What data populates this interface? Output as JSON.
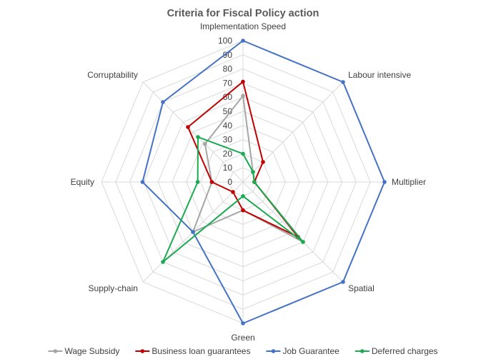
{
  "chart_data": {
    "type": "radar",
    "title": "Criteria for Fiscal Policy action",
    "categories": [
      "Implementation Speed",
      "Labour intensive",
      "Multiplier",
      "Spatial",
      "Green",
      "Supply-chain",
      "Equity",
      "Corruptability"
    ],
    "r_ticks": [
      "0",
      "10",
      "20",
      "30",
      "40",
      "50",
      "60",
      "70",
      "80",
      "90",
      "100"
    ],
    "rlim": [
      0,
      100
    ],
    "grid": true,
    "legend": "bottom",
    "series": [
      {
        "name": "Wage Subsidy",
        "color": "#a5a5a5",
        "values": [
          61,
          10,
          8,
          60,
          20,
          50,
          22,
          38
        ]
      },
      {
        "name": "Business loan guarantees",
        "color": "#c00000",
        "values": [
          71,
          20,
          8,
          55,
          20,
          10,
          22,
          55
        ]
      },
      {
        "name": "Job Guarantee",
        "color": "#4472c4",
        "values": [
          100,
          100,
          100,
          100,
          100,
          50,
          71,
          80
        ]
      },
      {
        "name": "Deferred charges",
        "color": "#1aaa50",
        "values": [
          20,
          10,
          8,
          60,
          10,
          80,
          32,
          45
        ]
      }
    ]
  }
}
